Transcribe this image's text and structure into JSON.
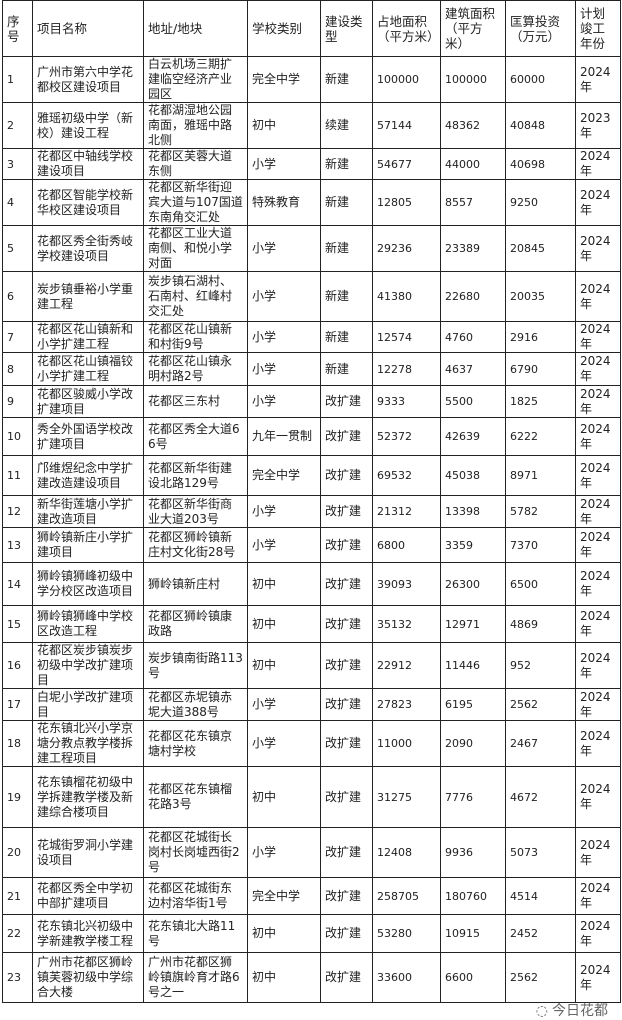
{
  "headers": [
    "序号",
    "项目名称",
    "地址/地块",
    "学校类别",
    "建设类型",
    "占地面积（平方米）",
    "建筑面积（平方米）",
    "匡算投资（万元）",
    "计划竣工年份"
  ],
  "rows": [
    [
      "1",
      "广州市第六中学花都校区建设项目",
      "白云机场三期扩建临空经济产业园区",
      "完全中学",
      "新建",
      "100000",
      "100000",
      "60000",
      "2024年"
    ],
    [
      "2",
      "雅瑶初级中学（新校）建设工程",
      "花都湖湿地公园南面，雅瑶中路北侧",
      "初中",
      "续建",
      "57144",
      "48362",
      "40848",
      "2023年"
    ],
    [
      "3",
      "花都区中轴线学校建设项目",
      "花都区芙蓉大道东侧",
      "小学",
      "新建",
      "54677",
      "44000",
      "40698",
      "2024年"
    ],
    [
      "4",
      "花都区智能学校新华校区建设项目",
      "花都区新华街迎宾大道与107国道东南角交汇处",
      "特殊教育",
      "新建",
      "12805",
      "8557",
      "9250",
      "2024年"
    ],
    [
      "5",
      "花都区秀全街秀岐学校建设项目",
      "花都区工业大道南侧、和悦小学对面",
      "小学",
      "新建",
      "29236",
      "23389",
      "20845",
      "2024年"
    ],
    [
      "6",
      "炭步镇垂裕小学重建工程",
      "炭步镇石湖村、石南村、红峰村交汇处",
      "小学",
      "新建",
      "41380",
      "22680",
      "20035",
      "2024年"
    ],
    [
      "7",
      "花都区花山镇新和小学扩建工程",
      "花都区花山镇新和村街9号",
      "小学",
      "新建",
      "12574",
      "4760",
      "2916",
      "2024年"
    ],
    [
      "8",
      "花都区花山镇福铰小学扩建工程",
      "花都区花山镇永明村路2号",
      "小学",
      "新建",
      "12278",
      "4637",
      "6790",
      "2024年"
    ],
    [
      "9",
      "花都区骏威小学改扩建项目",
      "花都区三东村",
      "小学",
      "改扩建",
      "9333",
      "5500",
      "1825",
      "2024年"
    ],
    [
      "10",
      "秀全外国语学校改扩建项目",
      "花都区秀全大道66号",
      "九年一贯制",
      "改扩建",
      "52372",
      "42639",
      "6222",
      "2024年"
    ],
    [
      "11",
      "邝维煜纪念中学扩建改造建设项目",
      "花都区新华街建设北路129号",
      "完全中学",
      "改扩建",
      "69532",
      "45038",
      "8971",
      "2024年"
    ],
    [
      "12",
      "新华街莲塘小学扩建改造项目",
      "花都区新华街商业大道203号",
      "小学",
      "改扩建",
      "21312",
      "13398",
      "5782",
      "2024年"
    ],
    [
      "13",
      "狮岭镇新庄小学扩建项目",
      "花都区狮岭镇新庄村文化街28号",
      "小学",
      "改扩建",
      "6800",
      "3359",
      "7370",
      "2024年"
    ],
    [
      "14",
      "狮岭镇狮峰初级中学分校区改造项目",
      "狮岭镇新庄村",
      "初中",
      "改扩建",
      "39093",
      "26300",
      "6500",
      "2024年"
    ],
    [
      "15",
      "狮岭镇狮峰中学校区改造工程",
      "花都区狮岭镇康政路",
      "初中",
      "改扩建",
      "35132",
      "12971",
      "4869",
      "2024年"
    ],
    [
      "16",
      "花都区炭步镇炭步初级中学改扩建项目",
      "炭步镇南街路113号",
      "初中",
      "改扩建",
      "22912",
      "11446",
      "952",
      "2024年"
    ],
    [
      "17",
      "白坭小学改扩建项目",
      "花都区赤坭镇赤坭大道388号",
      "小学",
      "改扩建",
      "27823",
      "6195",
      "2562",
      "2024年"
    ],
    [
      "18",
      "花东镇北兴小学京塘分教点教学楼拆建工程项目",
      "花都区花东镇京塘村学校",
      "小学",
      "改扩建",
      "11000",
      "2090",
      "2467",
      "2024年"
    ],
    [
      "19",
      "花东镇榴花初级中学拆建教学楼及新建综合楼项目",
      "花都区花东镇榴花路3号",
      "初中",
      "改扩建",
      "31275",
      "7776",
      "4672",
      "2024年"
    ],
    [
      "20",
      "花城街罗洞小学建设项目",
      "花都区花城街长岗村长岗墟西街2号",
      "小学",
      "改扩建",
      "12408",
      "9936",
      "5073",
      "2024年"
    ],
    [
      "21",
      "花都区秀全中学初中部扩建项目",
      "花都区花城街东边村溶华街1号",
      "完全中学",
      "改扩建",
      "258705",
      "180760",
      "4514",
      "2024年"
    ],
    [
      "22",
      "花东镇北兴初级中学新建教学楼工程",
      "花东镇北大路11号",
      "初中",
      "改扩建",
      "53280",
      "10915",
      "2452",
      "2024年"
    ],
    [
      "23",
      "广州市花都区狮岭镇芙蓉初级中学综合大楼",
      "广州市花都区狮岭镇旗岭育才路6号之一",
      "初中",
      "改扩建",
      "33600",
      "6600",
      "2562",
      "2024年"
    ]
  ],
  "watermark": "今日花都"
}
